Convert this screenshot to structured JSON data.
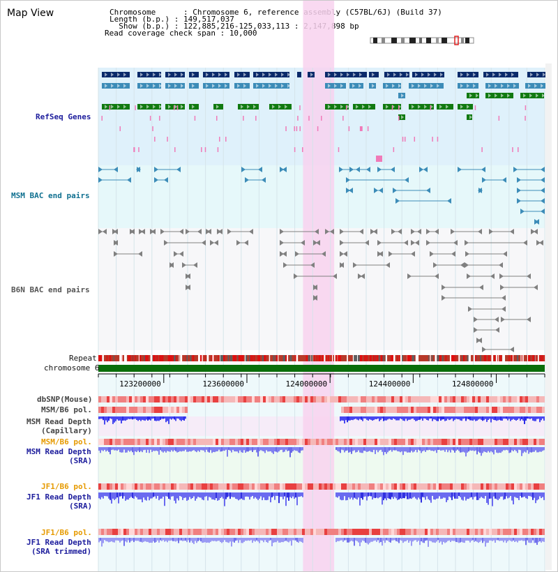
{
  "title": "Map View",
  "info": {
    "chromosome_label": "Chromosome      : ",
    "chromosome_value": "Chromosome 6, reference assembly (C57BL/6J) (Build 37)",
    "length_label": "Length (b.p.) : ",
    "length_value": "149,517,037",
    "show_label": "  Show (b.p.) : ",
    "show_value": "122,885,216-125,033,113 : 2,147,898 bp",
    "span_label": "Read coverage check span : ",
    "span_value": "10,000"
  },
  "tracks": {
    "refseq": "RefSeq Genes",
    "msm_bac": "MSM BAC end pairs",
    "b6n_bac": "B6N BAC end pairs",
    "repeat": "Repeat",
    "chromosome": "chromosome 6",
    "dbsnp": "dbSNP(Mouse)",
    "msm_pol": "MSM/B6 pol.",
    "msm_depth_cap_1": "MSM Read Depth",
    "msm_depth_cap_2": "(Capillary)",
    "msm_pol_sra": "MSM/B6 pol.",
    "msm_depth_sra_1": "MSM Read Depth",
    "msm_depth_sra_2": "(SRA)",
    "jf1_pol_sra": "JF1/B6 pol.",
    "jf1_depth_sra_1": "JF1 Read Depth",
    "jf1_depth_sra_2": "(SRA)",
    "jf1_pol_trim": "JF1/B6 pol.",
    "jf1_depth_trim_1": "JF1 Read Depth",
    "jf1_depth_trim_2": "(SRA trimmed)"
  },
  "ruler": {
    "ticks": [
      "123200000",
      "123600000",
      "124000000",
      "124400000",
      "124800000"
    ],
    "range_start": 122885216,
    "range_end": 125033113
  },
  "highlight": {
    "start": 123870000,
    "end": 124020000
  },
  "colors": {
    "refseq_bg": "#dff1fb",
    "msm_bac_bg": "#e6f8fa",
    "highlight": "#f8d2ee",
    "gene_dark": "#0a2a6a",
    "gene_mid": "#3c8cb8",
    "gene_green": "#117a11",
    "pink_mark": "#f07ab8",
    "chromosome_green": "#0a6e0a",
    "depth_blue": "#2a2ae8",
    "depth_light": "#8080f0",
    "orange_label": "#e69a00"
  }
}
